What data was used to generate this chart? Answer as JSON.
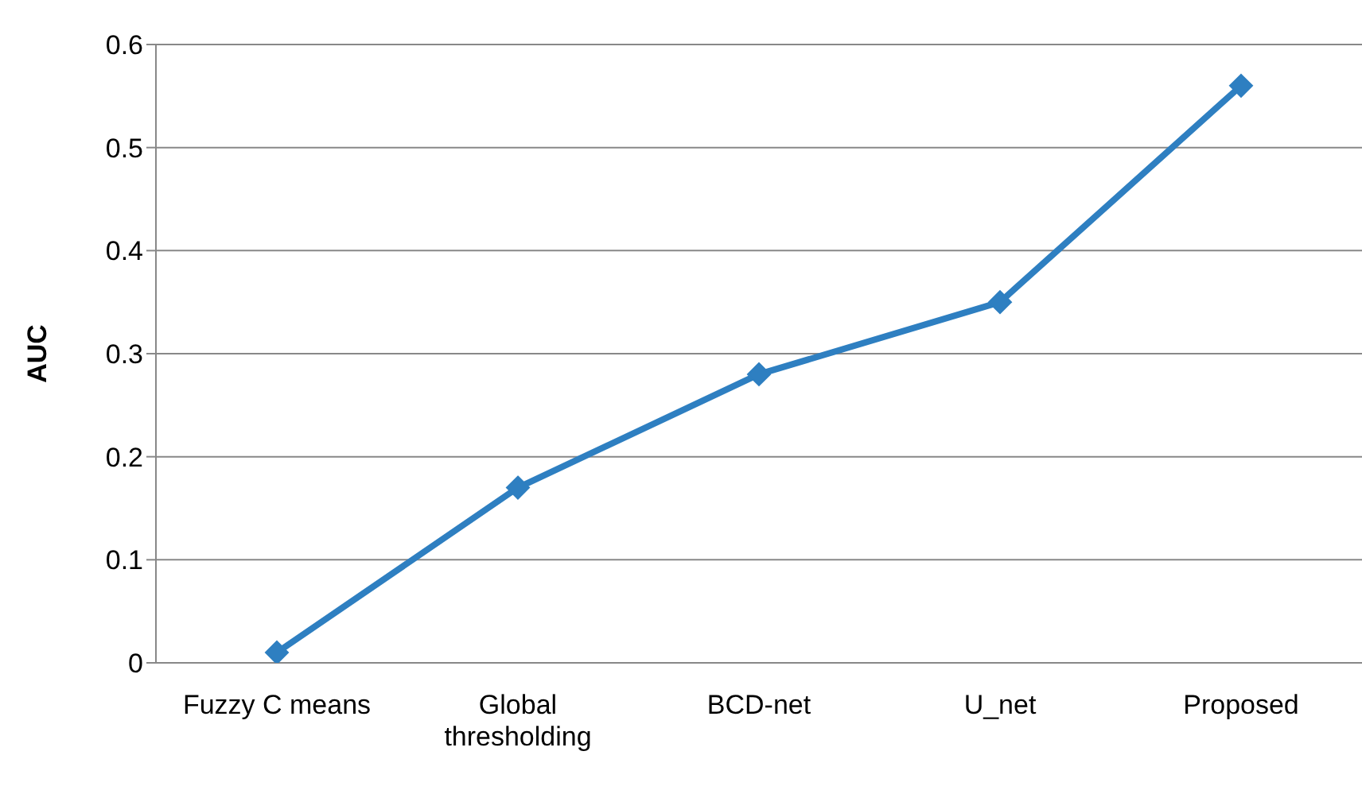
{
  "chart_data": {
    "type": "line",
    "ylabel": "AUC",
    "categories": [
      "Fuzzy C means",
      "Global thresholding",
      "BCD-net",
      "U_net",
      "Proposed"
    ],
    "series": [
      {
        "color": "#2e7fc1",
        "values": [
          0.01,
          0.17,
          0.28,
          0.35,
          0.56
        ]
      }
    ],
    "ylim": [
      0,
      0.6
    ],
    "yticks": [
      0,
      0.1,
      0.2,
      0.3,
      0.4,
      0.5,
      0.6
    ],
    "grid": "y",
    "marker": "diamond",
    "line_style": "solid"
  }
}
